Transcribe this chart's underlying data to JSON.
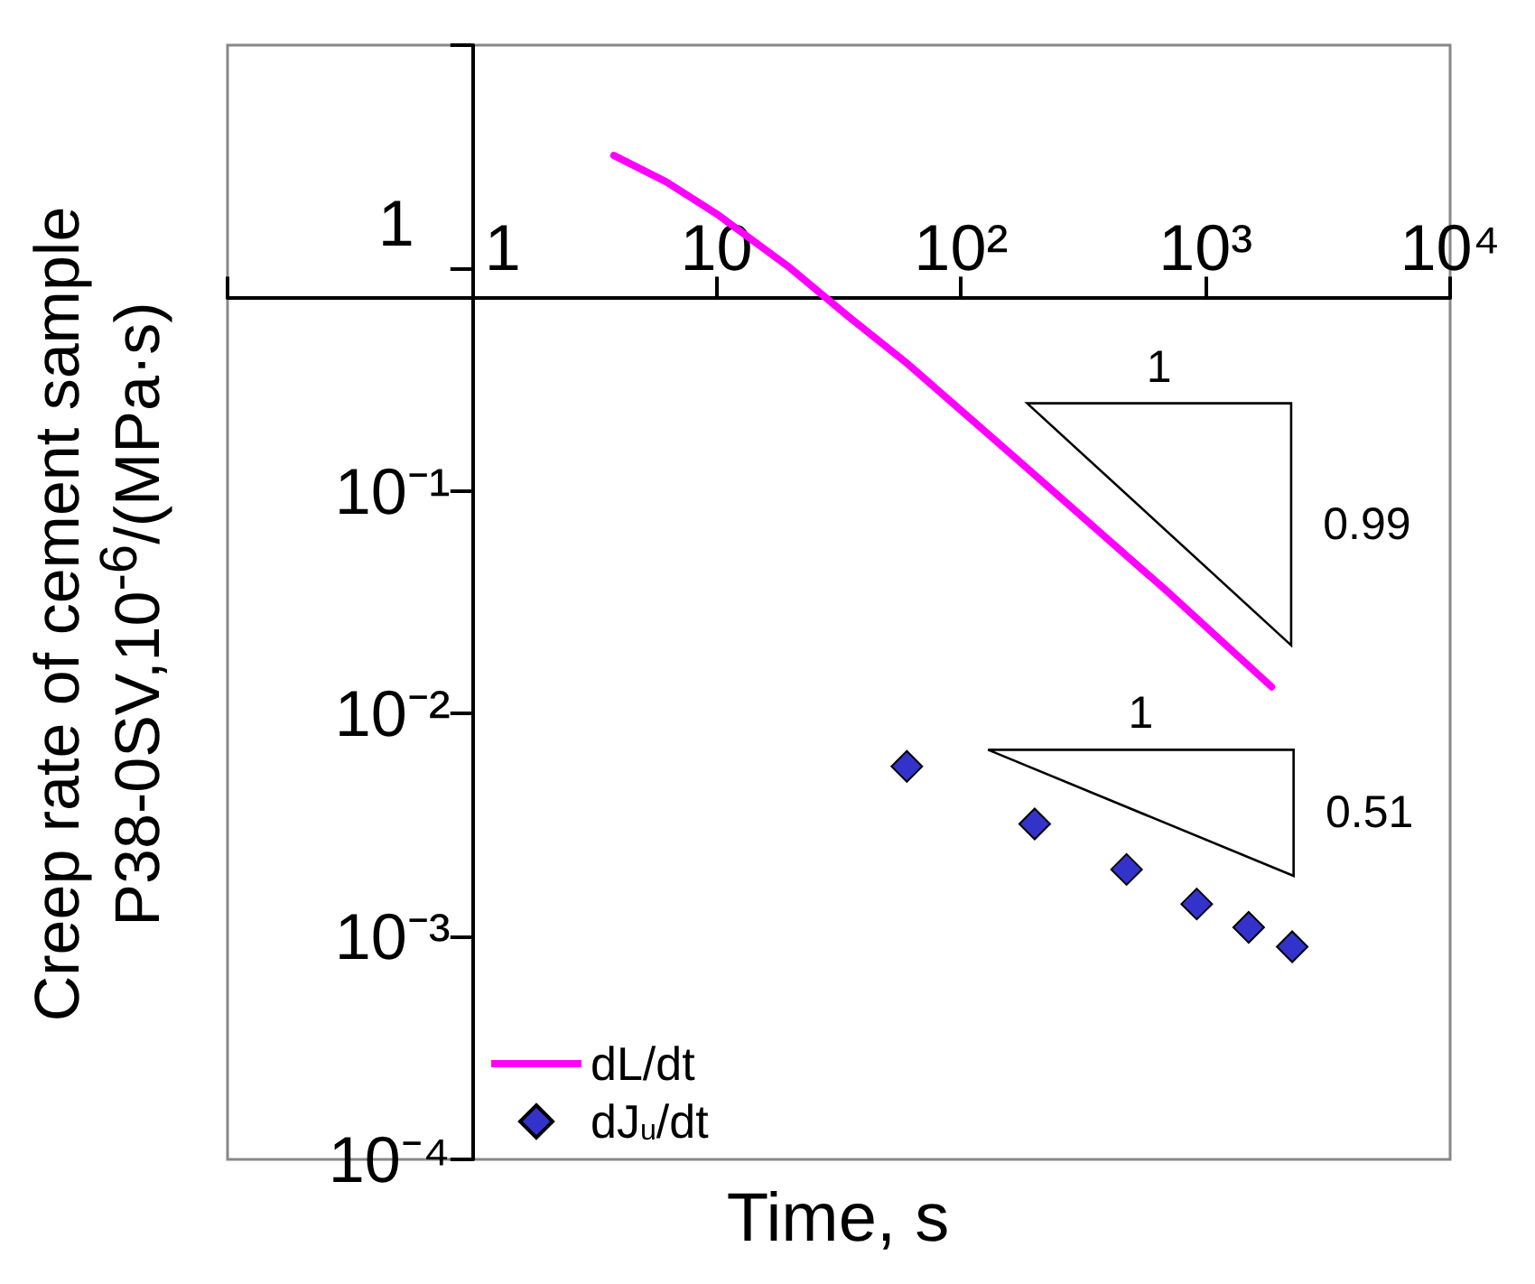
{
  "chart_data": {
    "type": "line",
    "xlabel": "Time, s",
    "ylabel": "Creep rate of cement sample\nP38-0SV,10$^{-6}$/(MPa·s)",
    "log": "xy",
    "xlim": [
      0.1,
      10000
    ],
    "ylim": [
      0.0001,
      10
    ],
    "xticks": [
      {
        "value": 0.1,
        "label": null
      },
      1,
      10,
      {
        "value": 100,
        "label": "10²"
      },
      {
        "value": 1000,
        "label": "10³"
      },
      {
        "value": 10000,
        "label": "10⁴"
      }
    ],
    "yticks": [
      {
        "value": 0.0001,
        "label": "10⁻⁴"
      },
      {
        "value": 0.001,
        "label": "10⁻³"
      },
      {
        "value": 0.01,
        "label": "10⁻²"
      },
      {
        "value": 0.1,
        "label": "10⁻¹"
      },
      1,
      {
        "value": 10,
        "label": null
      }
    ],
    "grid": false,
    "legend": "bottom left",
    "series": [
      {
        "name": "dL/dt",
        "color": "#ff00ff",
        "marker": "none",
        "x": [
          3.8,
          6.2,
          10,
          20,
          35,
          59,
          165,
          684,
          1862
        ],
        "values": [
          3.2,
          2.44,
          1.75,
          1,
          0.6,
          0.38,
          0.142,
          0.036,
          0.0132
        ]
      },
      {
        "name": "dJ$_{u}$/dt",
        "type": "scatter",
        "color": "#3333cc",
        "marker": "diamond",
        "x": [
          60,
          200,
          475,
          920,
          1500,
          2260
        ],
        "values": [
          0.0058,
          0.0032,
          0.002,
          0.0014,
          0.0011,
          0.0009
        ]
      }
    ],
    "annotations": [
      "1",
      "0.99",
      "1",
      "0.51"
    ]
  }
}
